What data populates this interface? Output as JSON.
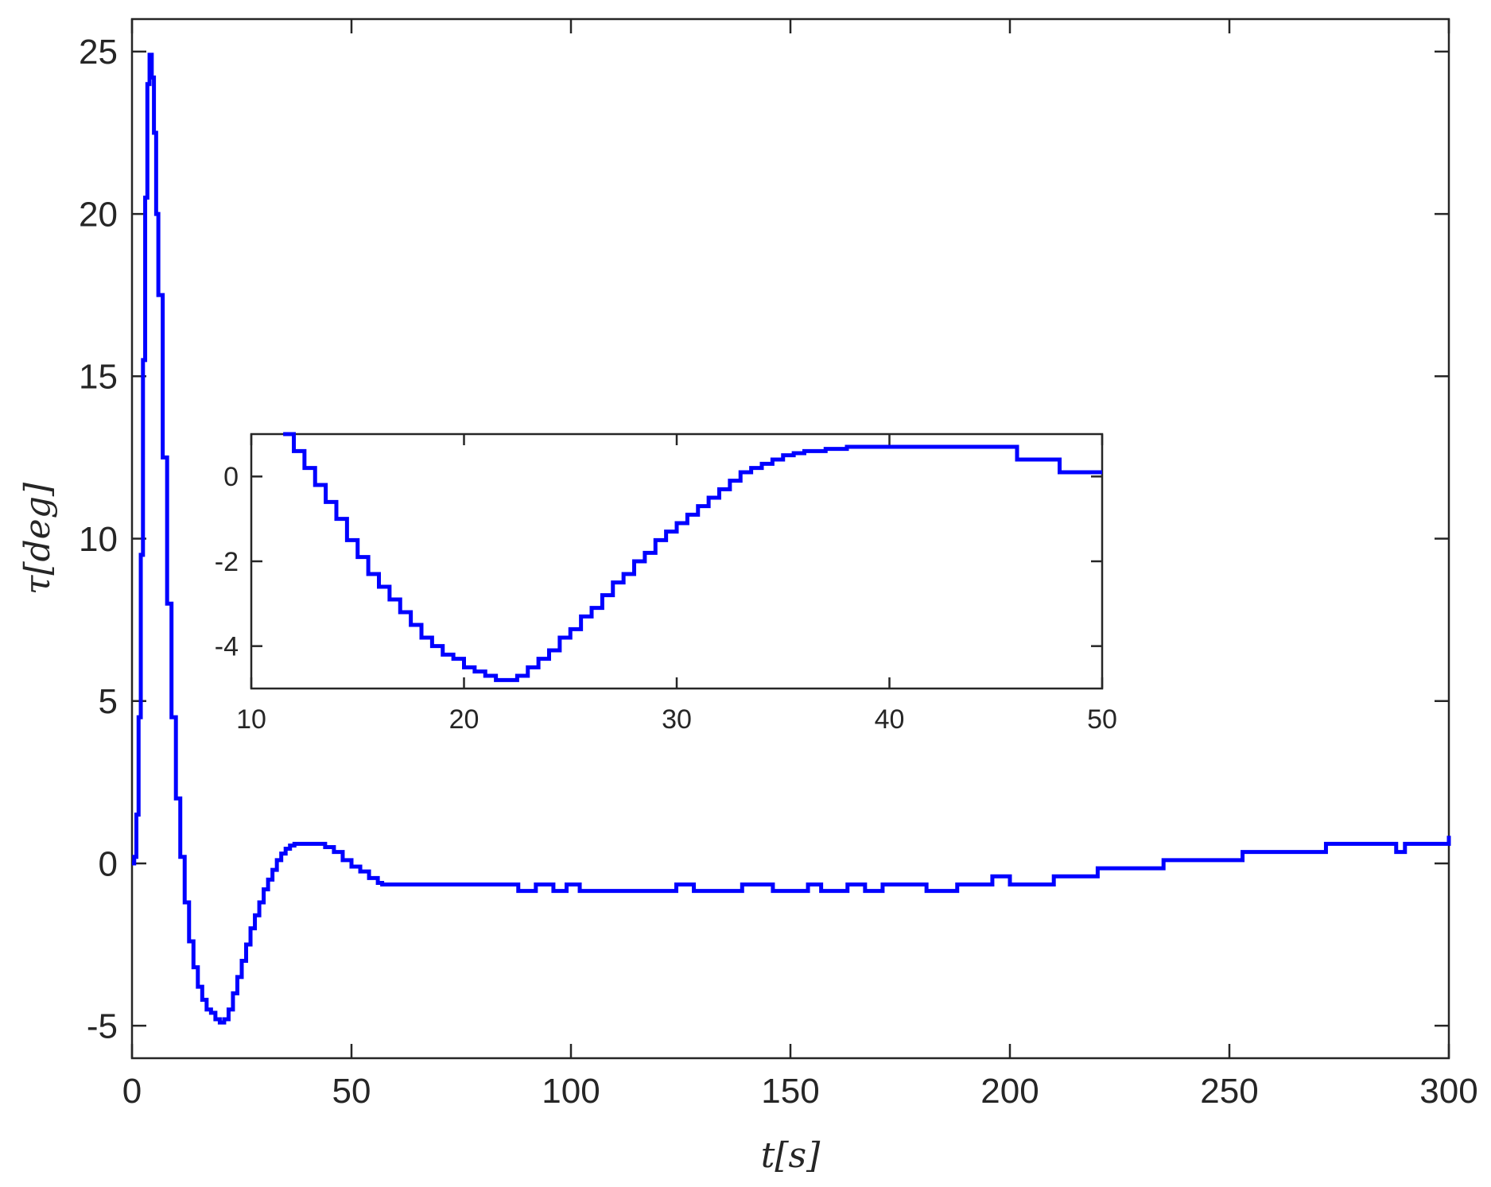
{
  "chart_data": [
    {
      "type": "line",
      "xlabel": "t[s]",
      "ylabel": "τ[deg]",
      "xlim": [
        0,
        300
      ],
      "ylim": [
        -6,
        26
      ],
      "xticks": [
        0,
        50,
        100,
        150,
        200,
        250,
        300
      ],
      "yticks": [
        -5,
        0,
        5,
        10,
        15,
        20,
        25
      ],
      "xtick_labels": [
        "0",
        "50",
        "100",
        "150",
        "200",
        "250",
        "300"
      ],
      "ytick_labels": [
        "-5",
        "0",
        "5",
        "10",
        "15",
        "20",
        "25"
      ],
      "grid": false,
      "line_color": "#0000ff",
      "series": [
        {
          "x": [
            0,
            0.5,
            1,
            1.5,
            2,
            2.5,
            3,
            3.5,
            4,
            4.5,
            5,
            5.5,
            6,
            7,
            8,
            9,
            10,
            11,
            12,
            13,
            14,
            15,
            16,
            17,
            18,
            19,
            20,
            21,
            22,
            23,
            24,
            25,
            26,
            27,
            28,
            29,
            30,
            31,
            32,
            33,
            34,
            35,
            36,
            37,
            38,
            40,
            42,
            44,
            46,
            48,
            50,
            52,
            54,
            56,
            57,
            60,
            70,
            80,
            85,
            88,
            92,
            96,
            99,
            102,
            110,
            120,
            124,
            128,
            136,
            139,
            146,
            154,
            157,
            163,
            167,
            171,
            178,
            181,
            188,
            192,
            196,
            200,
            210,
            218,
            220,
            230,
            235,
            240,
            250,
            253,
            260,
            270,
            272,
            280,
            286,
            288,
            290,
            296,
            300
          ],
          "y": [
            0,
            0.2,
            1.5,
            4.5,
            9.5,
            15.5,
            20.5,
            24.0,
            24.9,
            24.2,
            22.5,
            20.0,
            17.5,
            12.5,
            8.0,
            4.5,
            2.0,
            0.2,
            -1.2,
            -2.4,
            -3.2,
            -3.8,
            -4.2,
            -4.5,
            -4.6,
            -4.8,
            -4.9,
            -4.8,
            -4.5,
            -4.0,
            -3.5,
            -3.0,
            -2.5,
            -2.0,
            -1.6,
            -1.2,
            -0.8,
            -0.5,
            -0.2,
            0.1,
            0.3,
            0.45,
            0.55,
            0.6,
            0.6,
            0.6,
            0.6,
            0.5,
            0.35,
            0.1,
            -0.1,
            -0.25,
            -0.45,
            -0.6,
            -0.65,
            -0.65,
            -0.65,
            -0.65,
            -0.65,
            -0.85,
            -0.65,
            -0.85,
            -0.65,
            -0.85,
            -0.85,
            -0.85,
            -0.65,
            -0.85,
            -0.85,
            -0.65,
            -0.85,
            -0.65,
            -0.85,
            -0.65,
            -0.85,
            -0.65,
            -0.65,
            -0.85,
            -0.65,
            -0.65,
            -0.4,
            -0.65,
            -0.4,
            -0.4,
            -0.15,
            -0.15,
            0.1,
            0.1,
            0.1,
            0.35,
            0.35,
            0.35,
            0.6,
            0.6,
            0.6,
            0.35,
            0.6,
            0.6,
            0.85
          ]
        }
      ]
    },
    {
      "type": "line",
      "xlim": [
        10,
        50
      ],
      "ylim": [
        -5,
        1
      ],
      "xticks": [
        10,
        20,
        30,
        40,
        50
      ],
      "yticks": [
        -4,
        -2,
        0
      ],
      "xtick_labels": [
        "10",
        "20",
        "30",
        "40",
        "50"
      ],
      "ytick_labels": [
        "-4",
        "-2",
        "0"
      ],
      "grid": false,
      "line_color": "#0000ff",
      "series": [
        {
          "x": [
            11.5,
            12,
            12.5,
            13,
            13.5,
            14,
            14.5,
            15,
            15.5,
            16,
            16.5,
            17,
            17.5,
            18,
            18.5,
            19,
            19.5,
            20,
            20.5,
            21,
            21.5,
            22,
            22.5,
            23,
            23.5,
            24,
            24.5,
            25,
            25.5,
            26,
            26.5,
            27,
            27.5,
            28,
            28.5,
            29,
            29.5,
            30,
            30.5,
            31,
            31.5,
            32,
            32.5,
            33,
            33.5,
            34,
            34.5,
            35,
            35.5,
            36,
            37,
            38,
            40,
            42,
            44,
            45,
            46,
            47,
            48,
            50
          ],
          "y": [
            1,
            0.6,
            0.2,
            -0.2,
            -0.6,
            -1.0,
            -1.5,
            -1.9,
            -2.3,
            -2.6,
            -2.9,
            -3.2,
            -3.5,
            -3.8,
            -4.0,
            -4.2,
            -4.3,
            -4.5,
            -4.6,
            -4.7,
            -4.8,
            -4.8,
            -4.7,
            -4.5,
            -4.3,
            -4.1,
            -3.8,
            -3.6,
            -3.3,
            -3.1,
            -2.8,
            -2.5,
            -2.3,
            -2.0,
            -1.8,
            -1.5,
            -1.3,
            -1.1,
            -0.9,
            -0.7,
            -0.5,
            -0.3,
            -0.1,
            0.1,
            0.2,
            0.3,
            0.4,
            0.5,
            0.55,
            0.6,
            0.65,
            0.7,
            0.7,
            0.7,
            0.7,
            0.7,
            0.4,
            0.4,
            0.1,
            0.1
          ]
        }
      ]
    }
  ]
}
